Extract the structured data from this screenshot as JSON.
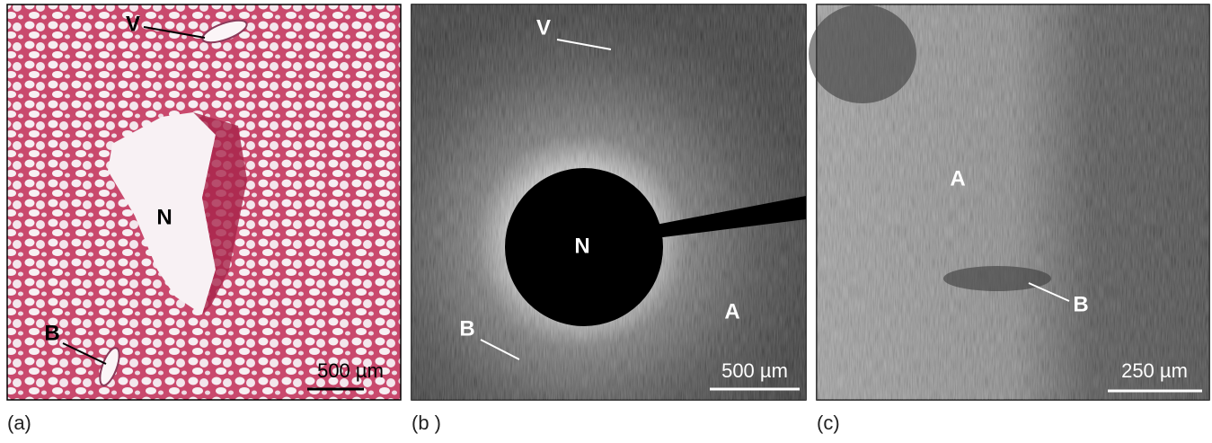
{
  "panels": [
    {
      "label": "(a)",
      "annotations": [
        "V",
        "N",
        "B"
      ],
      "scale_bar": "500 µm"
    },
    {
      "label": "(b )",
      "annotations": [
        "V",
        "N",
        "A",
        "B"
      ],
      "scale_bar": "500 µm"
    },
    {
      "label": "(c)",
      "annotations": [
        "A",
        "B"
      ],
      "scale_bar": "250 µm"
    }
  ]
}
